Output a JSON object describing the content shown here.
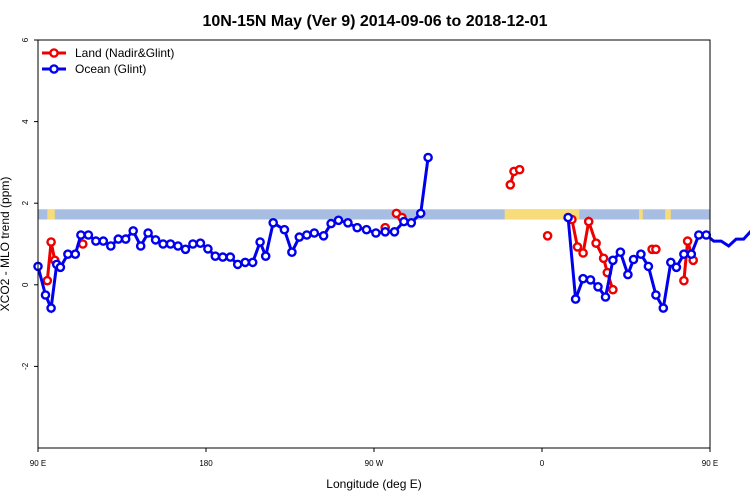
{
  "chart_data": {
    "type": "line",
    "title": "10N-15N May (Ver 9)   2014-09-06 to 2018-12-01",
    "xlabel": "Longitude (deg E)",
    "ylabel": "XCO2 - MLO trend (ppm)",
    "xlim": [
      90,
      450
    ],
    "ylim": [
      -4,
      6
    ],
    "x_ticks": [
      {
        "value": 90,
        "label": "90 E"
      },
      {
        "value": 180,
        "label": "180"
      },
      {
        "value": 270,
        "label": "90 W"
      },
      {
        "value": 360,
        "label": "0"
      },
      {
        "value": 450,
        "label": "90 E"
      },
      {
        "value": 540,
        "label": "180"
      }
    ],
    "y_ticks": [
      -2,
      0,
      2,
      4,
      6
    ],
    "grid": false,
    "legend_position": "top-left",
    "land_ocean_band": {
      "y_range": [
        1.6,
        1.85
      ],
      "ocean_color": "#a7bde2",
      "land_color": "#f8dc7a"
    },
    "series": [
      {
        "name": "Land (Nadir&Glint)",
        "color": "#ee0000",
        "points": [
          [
            95.0,
            0.1
          ],
          [
            97.0,
            1.05
          ],
          [
            99.0,
            0.6
          ],
          [
            114.0,
            1.0
          ],
          [
            282.0,
            1.75
          ],
          [
            285.0,
            1.65
          ],
          [
            276.0,
            1.4
          ],
          [
            343.0,
            2.45
          ],
          [
            345.0,
            2.78
          ],
          [
            348.0,
            2.82
          ],
          [
            363.0,
            1.2
          ],
          [
            376.0,
            1.6
          ],
          [
            379.0,
            0.93
          ],
          [
            382.0,
            0.78
          ],
          [
            385.0,
            1.55
          ],
          [
            389.0,
            1.02
          ],
          [
            393.0,
            0.65
          ],
          [
            395.0,
            0.3
          ],
          [
            398.0,
            -0.12
          ],
          [
            419.0,
            0.87
          ],
          [
            421.0,
            0.87
          ],
          [
            436.0,
            0.1
          ],
          [
            438.0,
            1.07
          ],
          [
            441.0,
            0.6
          ],
          [
            453.0,
            1.02
          ]
        ],
        "segments": [
          [
            [
              95.0,
              0.1
            ],
            [
              97.0,
              1.05
            ],
            [
              99.0,
              0.6
            ]
          ],
          [
            [
              343.0,
              2.45
            ],
            [
              345.0,
              2.78
            ]
          ],
          [
            [
              376.0,
              1.6
            ],
            [
              379.0,
              0.93
            ],
            [
              382.0,
              0.78
            ],
            [
              385.0,
              1.55
            ],
            [
              389.0,
              1.02
            ],
            [
              393.0,
              0.65
            ],
            [
              395.0,
              0.3
            ],
            [
              398.0,
              -0.12
            ]
          ],
          [
            [
              419.0,
              0.87
            ],
            [
              421.0,
              0.87
            ]
          ],
          [
            [
              436.0,
              0.1
            ],
            [
              438.0,
              1.07
            ],
            [
              441.0,
              0.6
            ]
          ]
        ]
      },
      {
        "name": "Ocean (Glint)",
        "color": "#0000ee",
        "points": [
          [
            90.0,
            0.45
          ],
          [
            94.0,
            -0.25
          ],
          [
            97.0,
            -0.57
          ],
          [
            100.0,
            0.5
          ],
          [
            102.0,
            0.43
          ],
          [
            106.0,
            0.75
          ],
          [
            110.0,
            0.75
          ],
          [
            113.0,
            1.22
          ],
          [
            117.0,
            1.22
          ],
          [
            121.0,
            1.07
          ],
          [
            125.0,
            1.07
          ],
          [
            129.0,
            0.95
          ],
          [
            133.0,
            1.12
          ],
          [
            137.0,
            1.12
          ],
          [
            141.0,
            1.32
          ],
          [
            145.0,
            0.95
          ],
          [
            149.0,
            1.27
          ],
          [
            153.0,
            1.1
          ],
          [
            157.0,
            1.0
          ],
          [
            161.0,
            1.0
          ],
          [
            165.0,
            0.95
          ],
          [
            169.0,
            0.87
          ],
          [
            173.0,
            1.0
          ],
          [
            177.0,
            1.02
          ],
          [
            181.0,
            0.88
          ],
          [
            185.0,
            0.7
          ],
          [
            189.0,
            0.68
          ],
          [
            193.0,
            0.68
          ],
          [
            197.0,
            0.5
          ],
          [
            201.0,
            0.55
          ],
          [
            205.0,
            0.55
          ],
          [
            209.0,
            1.05
          ],
          [
            212.0,
            0.7
          ],
          [
            216.0,
            1.52
          ],
          [
            222.0,
            1.35
          ],
          [
            226.0,
            0.8
          ],
          [
            230.0,
            1.17
          ],
          [
            234.0,
            1.22
          ],
          [
            238.0,
            1.27
          ],
          [
            243.0,
            1.2
          ],
          [
            247.0,
            1.5
          ],
          [
            251.0,
            1.58
          ],
          [
            256.0,
            1.52
          ],
          [
            261.0,
            1.4
          ],
          [
            266.0,
            1.35
          ],
          [
            271.0,
            1.27
          ],
          [
            276.0,
            1.3
          ],
          [
            281.0,
            1.3
          ],
          [
            286.0,
            1.55
          ],
          [
            290.0,
            1.52
          ],
          [
            295.0,
            1.75
          ],
          [
            299.0,
            3.12
          ],
          [
            374.0,
            1.65
          ],
          [
            378.0,
            -0.35
          ],
          [
            382.0,
            0.15
          ],
          [
            386.0,
            0.12
          ],
          [
            390.0,
            -0.05
          ],
          [
            394.0,
            -0.3
          ],
          [
            398.0,
            0.6
          ],
          [
            402.0,
            0.8
          ],
          [
            406.0,
            0.25
          ],
          [
            409.0,
            0.62
          ],
          [
            413.0,
            0.75
          ],
          [
            417.0,
            0.45
          ],
          [
            421.0,
            -0.25
          ],
          [
            425.0,
            -0.57
          ],
          [
            429.0,
            0.55
          ],
          [
            432.0,
            0.43
          ],
          [
            436.0,
            0.75
          ],
          [
            440.0,
            0.75
          ],
          [
            444.0,
            1.22
          ],
          [
            448.0,
            1.22
          ],
          [
            452.0,
            1.07
          ],
          [
            456.0,
            1.07
          ],
          [
            460.0,
            0.95
          ],
          [
            464.0,
            1.12
          ],
          [
            468.0,
            1.12
          ],
          [
            472.0,
            1.32
          ],
          [
            476.0,
            0.95
          ],
          [
            480.0,
            1.27
          ],
          [
            484.0,
            1.1
          ]
        ],
        "segments": [
          [
            [
              90.0,
              0.45
            ],
            [
              94.0,
              -0.25
            ],
            [
              97.0,
              -0.57
            ],
            [
              100.0,
              0.5
            ],
            [
              102.0,
              0.43
            ],
            [
              106.0,
              0.75
            ],
            [
              110.0,
              0.75
            ],
            [
              113.0,
              1.22
            ],
            [
              117.0,
              1.22
            ],
            [
              121.0,
              1.07
            ],
            [
              125.0,
              1.07
            ],
            [
              129.0,
              0.95
            ],
            [
              133.0,
              1.12
            ],
            [
              137.0,
              1.12
            ],
            [
              141.0,
              1.32
            ],
            [
              145.0,
              0.95
            ],
            [
              149.0,
              1.27
            ],
            [
              153.0,
              1.1
            ],
            [
              157.0,
              1.0
            ],
            [
              161.0,
              1.0
            ],
            [
              165.0,
              0.95
            ],
            [
              169.0,
              0.87
            ],
            [
              173.0,
              1.0
            ],
            [
              177.0,
              1.02
            ],
            [
              181.0,
              0.88
            ],
            [
              185.0,
              0.7
            ],
            [
              189.0,
              0.68
            ],
            [
              193.0,
              0.68
            ],
            [
              197.0,
              0.5
            ],
            [
              201.0,
              0.55
            ],
            [
              205.0,
              0.55
            ],
            [
              209.0,
              1.05
            ],
            [
              212.0,
              0.7
            ],
            [
              216.0,
              1.52
            ],
            [
              222.0,
              1.35
            ],
            [
              226.0,
              0.8
            ],
            [
              230.0,
              1.17
            ],
            [
              234.0,
              1.22
            ],
            [
              238.0,
              1.27
            ],
            [
              243.0,
              1.2
            ],
            [
              247.0,
              1.5
            ],
            [
              251.0,
              1.58
            ],
            [
              256.0,
              1.52
            ],
            [
              261.0,
              1.4
            ],
            [
              266.0,
              1.35
            ],
            [
              271.0,
              1.27
            ],
            [
              276.0,
              1.3
            ],
            [
              281.0,
              1.3
            ],
            [
              286.0,
              1.55
            ],
            [
              290.0,
              1.52
            ],
            [
              295.0,
              1.75
            ],
            [
              299.0,
              3.12
            ]
          ],
          [
            [
              374.0,
              1.65
            ],
            [
              378.0,
              -0.35
            ],
            [
              382.0,
              0.15
            ],
            [
              386.0,
              0.12
            ],
            [
              390.0,
              -0.05
            ],
            [
              394.0,
              -0.3
            ],
            [
              398.0,
              0.6
            ],
            [
              402.0,
              0.8
            ],
            [
              406.0,
              0.25
            ],
            [
              409.0,
              0.62
            ],
            [
              413.0,
              0.75
            ],
            [
              417.0,
              0.45
            ],
            [
              421.0,
              -0.25
            ],
            [
              425.0,
              -0.57
            ],
            [
              429.0,
              0.55
            ],
            [
              432.0,
              0.43
            ],
            [
              436.0,
              0.75
            ],
            [
              440.0,
              0.75
            ],
            [
              444.0,
              1.22
            ],
            [
              448.0,
              1.22
            ],
            [
              452.0,
              1.07
            ],
            [
              456.0,
              1.07
            ],
            [
              460.0,
              0.95
            ],
            [
              464.0,
              1.12
            ],
            [
              468.0,
              1.12
            ],
            [
              472.0,
              1.32
            ],
            [
              476.0,
              0.95
            ],
            [
              480.0,
              1.27
            ],
            [
              484.0,
              1.1
            ]
          ]
        ]
      }
    ]
  }
}
